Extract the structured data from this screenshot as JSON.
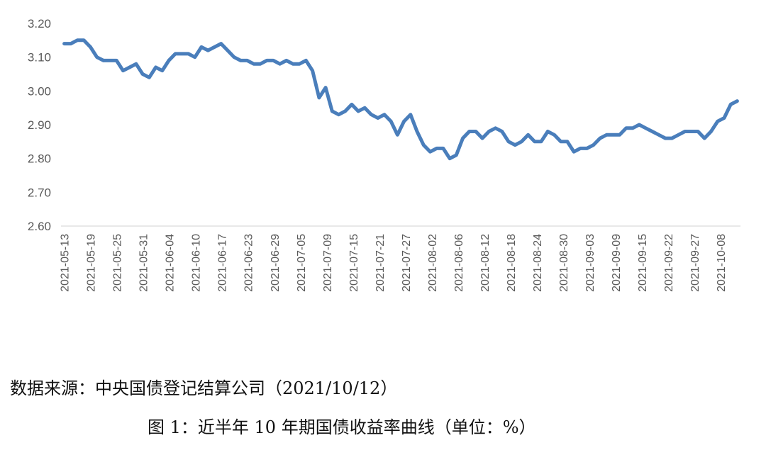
{
  "chart_data": {
    "type": "line",
    "title": "",
    "xlabel": "",
    "ylabel": "",
    "ylim": [
      2.6,
      3.2
    ],
    "y_ticks": [
      "3.20",
      "3.10",
      "3.00",
      "2.90",
      "2.80",
      "2.70",
      "2.60"
    ],
    "x_tick_labels": [
      "2021-05-13",
      "2021-05-19",
      "2021-05-25",
      "2021-05-31",
      "2021-06-04",
      "2021-06-10",
      "2021-06-17",
      "2021-06-23",
      "2021-06-29",
      "2021-07-05",
      "2021-07-09",
      "2021-07-15",
      "2021-07-21",
      "2021-07-27",
      "2021-08-02",
      "2021-08-06",
      "2021-08-12",
      "2021-08-18",
      "2021-08-24",
      "2021-08-30",
      "2021-09-03",
      "2021-09-09",
      "2021-09-15",
      "2021-09-22",
      "2021-09-27",
      "2021-10-08"
    ],
    "grid": false,
    "legend": "none",
    "series": [
      {
        "color": "#4a7ebb",
        "values": [
          3.14,
          3.14,
          3.15,
          3.15,
          3.13,
          3.1,
          3.09,
          3.09,
          3.09,
          3.06,
          3.07,
          3.08,
          3.05,
          3.04,
          3.07,
          3.06,
          3.09,
          3.11,
          3.11,
          3.11,
          3.1,
          3.13,
          3.12,
          3.13,
          3.14,
          3.12,
          3.1,
          3.09,
          3.09,
          3.08,
          3.08,
          3.09,
          3.09,
          3.08,
          3.09,
          3.08,
          3.08,
          3.09,
          3.06,
          2.98,
          3.01,
          2.94,
          2.93,
          2.94,
          2.96,
          2.94,
          2.95,
          2.93,
          2.92,
          2.93,
          2.91,
          2.87,
          2.91,
          2.93,
          2.88,
          2.84,
          2.82,
          2.83,
          2.83,
          2.8,
          2.81,
          2.86,
          2.88,
          2.88,
          2.86,
          2.88,
          2.89,
          2.88,
          2.85,
          2.84,
          2.85,
          2.87,
          2.85,
          2.85,
          2.88,
          2.87,
          2.85,
          2.85,
          2.82,
          2.83,
          2.83,
          2.84,
          2.86,
          2.87,
          2.87,
          2.87,
          2.89,
          2.89,
          2.9,
          2.89,
          2.88,
          2.87,
          2.86,
          2.86,
          2.87,
          2.88,
          2.88,
          2.88,
          2.86,
          2.88,
          2.91,
          2.92,
          2.96,
          2.97
        ]
      }
    ]
  },
  "captions": {
    "source": "数据来源：中央国债登记结算公司（2021/10/12）",
    "figure": "图 1：近半年 10 年期国债收益率曲线（单位：%）"
  }
}
